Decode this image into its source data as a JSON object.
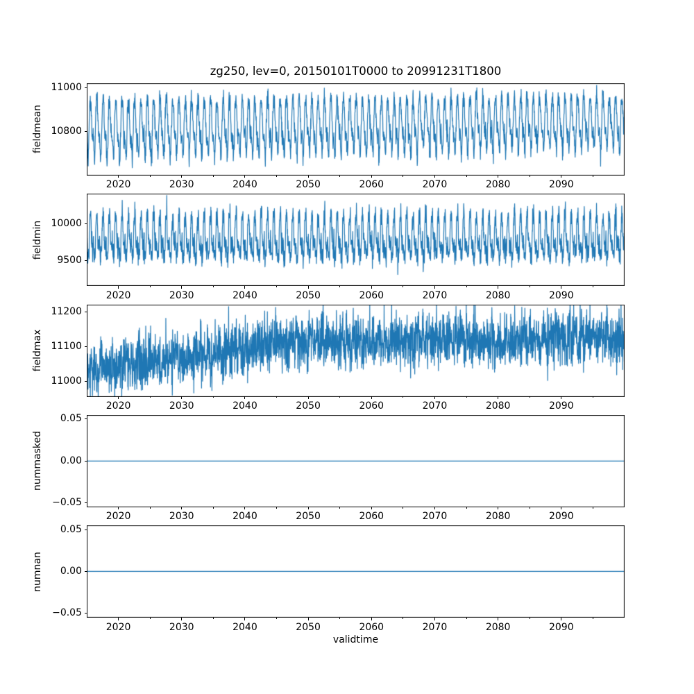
{
  "figure": {
    "title": "zg250, lev=0, 20150101T0000 to 20991231T1800",
    "xlabel": "validtime",
    "background_color": "#ffffff",
    "line_color": "#1f77b4",
    "spine_color": "#000000",
    "text_color": "#000000"
  },
  "chart_data": [
    {
      "type": "line",
      "ylabel": "fieldmean",
      "title": "zg250, lev=0, 20150101T0000 to 20991231T1800",
      "xlim": [
        2015,
        2100
      ],
      "ylim": [
        10598,
        11022
      ],
      "yticks": [
        {
          "value": 11000,
          "label": "11000"
        },
        {
          "value": 10800,
          "label": "10800"
        }
      ],
      "xticks": [
        {
          "value": 2020,
          "label": "2020"
        },
        {
          "value": 2030,
          "label": "2030"
        },
        {
          "value": 2040,
          "label": "2040"
        },
        {
          "value": 2050,
          "label": "2050"
        },
        {
          "value": 2060,
          "label": "2060"
        },
        {
          "value": 2070,
          "label": "2070"
        },
        {
          "value": 2080,
          "label": "2080"
        },
        {
          "value": 2090,
          "label": "2090"
        }
      ],
      "xticks_minor": [
        2025,
        2035,
        2045,
        2055,
        2065,
        2075,
        2085,
        2095
      ],
      "grid": false,
      "legend": null,
      "series_stats": {
        "approx_min": 10615,
        "approx_max": 11005,
        "approx_mean": 10825,
        "summary": "Annual oscillation ~10640-10990 with sub-annual wiggles; slight upward trend of ~30 over 2015-2100"
      },
      "synthesis": {
        "kind": "seasonal",
        "points": 2600,
        "base": 10812,
        "trend": 30,
        "amp_fade": 0.12,
        "harmonics": [
          {
            "freq": 1,
            "amp": 102,
            "phase": 4.0
          },
          {
            "freq": 2,
            "amp": 38,
            "phase": 1.2
          },
          {
            "freq": 3,
            "amp": 15,
            "phase": 0.5
          }
        ],
        "noise": 24
      }
    },
    {
      "type": "line",
      "ylabel": "fieldmin",
      "xlim": [
        2015,
        2100
      ],
      "ylim": [
        9155,
        10414
      ],
      "yticks": [
        {
          "value": 10000,
          "label": "10000"
        },
        {
          "value": 9500,
          "label": "9500"
        }
      ],
      "xticks": [
        {
          "value": 2020,
          "label": "2020"
        },
        {
          "value": 2030,
          "label": "2030"
        },
        {
          "value": 2040,
          "label": "2040"
        },
        {
          "value": 2050,
          "label": "2050"
        },
        {
          "value": 2060,
          "label": "2060"
        },
        {
          "value": 2070,
          "label": "2070"
        },
        {
          "value": 2080,
          "label": "2080"
        },
        {
          "value": 2090,
          "label": "2090"
        }
      ],
      "xticks_minor": [
        2025,
        2035,
        2045,
        2055,
        2065,
        2075,
        2085,
        2095
      ],
      "grid": false,
      "legend": null,
      "series_stats": {
        "approx_min": 9215,
        "approx_max": 10355,
        "approx_mean": 9790,
        "summary": "Dense stationary oscillation roughly 9350-10250 around ~9790, no visible trend"
      },
      "synthesis": {
        "kind": "seasonal",
        "points": 3200,
        "base": 9790,
        "trend": 0,
        "amp_fade": 0,
        "harmonics": [
          {
            "freq": 1,
            "amp": 240,
            "phase": 4.0
          },
          {
            "freq": 2,
            "amp": 140,
            "phase": 0.9
          },
          {
            "freq": 5,
            "amp": 60,
            "phase": 0.0
          }
        ],
        "noise": 65
      }
    },
    {
      "type": "line",
      "ylabel": "fieldmax",
      "xlim": [
        2015,
        2100
      ],
      "ylim": [
        10957,
        11221
      ],
      "yticks": [
        {
          "value": 11200,
          "label": "11200"
        },
        {
          "value": 11100,
          "label": "11100"
        },
        {
          "value": 11000,
          "label": "11000"
        }
      ],
      "xticks": [
        {
          "value": 2020,
          "label": "2020"
        },
        {
          "value": 2030,
          "label": "2030"
        },
        {
          "value": 2040,
          "label": "2040"
        },
        {
          "value": 2050,
          "label": "2050"
        },
        {
          "value": 2060,
          "label": "2060"
        },
        {
          "value": 2070,
          "label": "2070"
        },
        {
          "value": 2080,
          "label": "2080"
        },
        {
          "value": 2090,
          "label": "2090"
        }
      ],
      "xticks_minor": [
        2025,
        2035,
        2045,
        2055,
        2065,
        2075,
        2085,
        2095
      ],
      "grid": false,
      "legend": null,
      "series_stats": {
        "approx_min": 10970,
        "approx_max": 11210,
        "approx_mean": 11100,
        "summary": "Noisy band centered ~11040 in 2015 rising to ~11120 by ~2050 then roughly flat, spikes to ~11200"
      },
      "synthesis": {
        "kind": "seasonal",
        "points": 3000,
        "base": 11035,
        "trend": 20,
        "amp_fade": 0,
        "ramp": {
          "amount": 70,
          "frac": 0.4
        },
        "harmonics": [
          {
            "freq": 1,
            "amp": 14,
            "phase": 0.3
          },
          {
            "freq": 3,
            "amp": 8,
            "phase": 1.0
          }
        ],
        "noise": 36,
        "spikes": [
          {
            "prob": 0.012,
            "amp": 65,
            "until": 1.0
          },
          {
            "prob": 0.01,
            "amp": -55,
            "until": 0.3
          }
        ]
      }
    },
    {
      "type": "line",
      "ylabel": "nummasked",
      "xlim": [
        2015,
        2100
      ],
      "ylim": [
        -0.055,
        0.055
      ],
      "yticks": [
        {
          "value": 0.05,
          "label": "0.05"
        },
        {
          "value": 0.0,
          "label": "0.00"
        },
        {
          "value": -0.05,
          "label": "−0.05"
        }
      ],
      "xticks": [
        {
          "value": 2020,
          "label": "2020"
        },
        {
          "value": 2030,
          "label": "2030"
        },
        {
          "value": 2040,
          "label": "2040"
        },
        {
          "value": 2050,
          "label": "2050"
        },
        {
          "value": 2060,
          "label": "2060"
        },
        {
          "value": 2070,
          "label": "2070"
        },
        {
          "value": 2080,
          "label": "2080"
        },
        {
          "value": 2090,
          "label": "2090"
        }
      ],
      "xticks_minor": [
        2025,
        2035,
        2045,
        2055,
        2065,
        2075,
        2085,
        2095
      ],
      "grid": false,
      "legend": null,
      "series_stats": {
        "approx_min": 0,
        "approx_max": 0,
        "approx_mean": 0,
        "summary": "Constant value 0 for entire time range"
      },
      "synthesis": {
        "kind": "constant",
        "value": 0,
        "points": 2
      }
    },
    {
      "type": "line",
      "ylabel": "numnan",
      "xlabel": "validtime",
      "xlim": [
        2015,
        2100
      ],
      "ylim": [
        -0.055,
        0.055
      ],
      "yticks": [
        {
          "value": 0.05,
          "label": "0.05"
        },
        {
          "value": 0.0,
          "label": "0.00"
        },
        {
          "value": -0.05,
          "label": "−0.05"
        }
      ],
      "xticks": [
        {
          "value": 2020,
          "label": "2020"
        },
        {
          "value": 2030,
          "label": "2030"
        },
        {
          "value": 2040,
          "label": "2040"
        },
        {
          "value": 2050,
          "label": "2050"
        },
        {
          "value": 2060,
          "label": "2060"
        },
        {
          "value": 2070,
          "label": "2070"
        },
        {
          "value": 2080,
          "label": "2080"
        },
        {
          "value": 2090,
          "label": "2090"
        }
      ],
      "xticks_minor": [
        2025,
        2035,
        2045,
        2055,
        2065,
        2075,
        2085,
        2095
      ],
      "grid": false,
      "legend": null,
      "series_stats": {
        "approx_min": 0,
        "approx_max": 0,
        "approx_mean": 0,
        "summary": "Constant value 0 for entire time range"
      },
      "synthesis": {
        "kind": "constant",
        "value": 0,
        "points": 2
      }
    }
  ]
}
